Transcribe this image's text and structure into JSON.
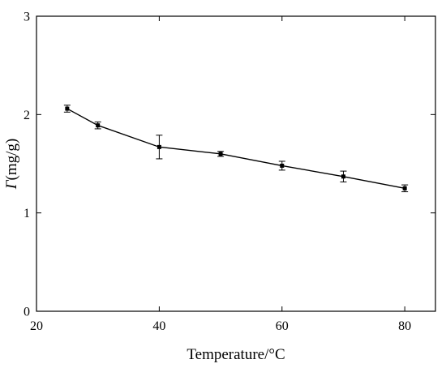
{
  "chart_data": {
    "type": "line",
    "title": "",
    "xlabel": "Temperature/°C",
    "ylabel_italic": "Γ",
    "ylabel_rest": "(mg/g)",
    "xlim": [
      20,
      85
    ],
    "ylim": [
      0,
      3
    ],
    "xticks": [
      20,
      40,
      60,
      80
    ],
    "yticks": [
      0,
      1,
      2,
      3
    ],
    "xtick_labels": [
      "20",
      "40",
      "60",
      "80"
    ],
    "ytick_labels": [
      "0",
      "1",
      "2",
      "3"
    ],
    "grid": false,
    "legend": "none",
    "series": [
      {
        "x": [
          25,
          30,
          40,
          50,
          60,
          70,
          80
        ],
        "y": [
          2.06,
          1.89,
          1.67,
          1.6,
          1.48,
          1.37,
          1.25
        ],
        "error": [
          0.035,
          0.035,
          0.12,
          0.025,
          0.045,
          0.055,
          0.035
        ],
        "color": "#000000",
        "marker": "square"
      }
    ]
  }
}
